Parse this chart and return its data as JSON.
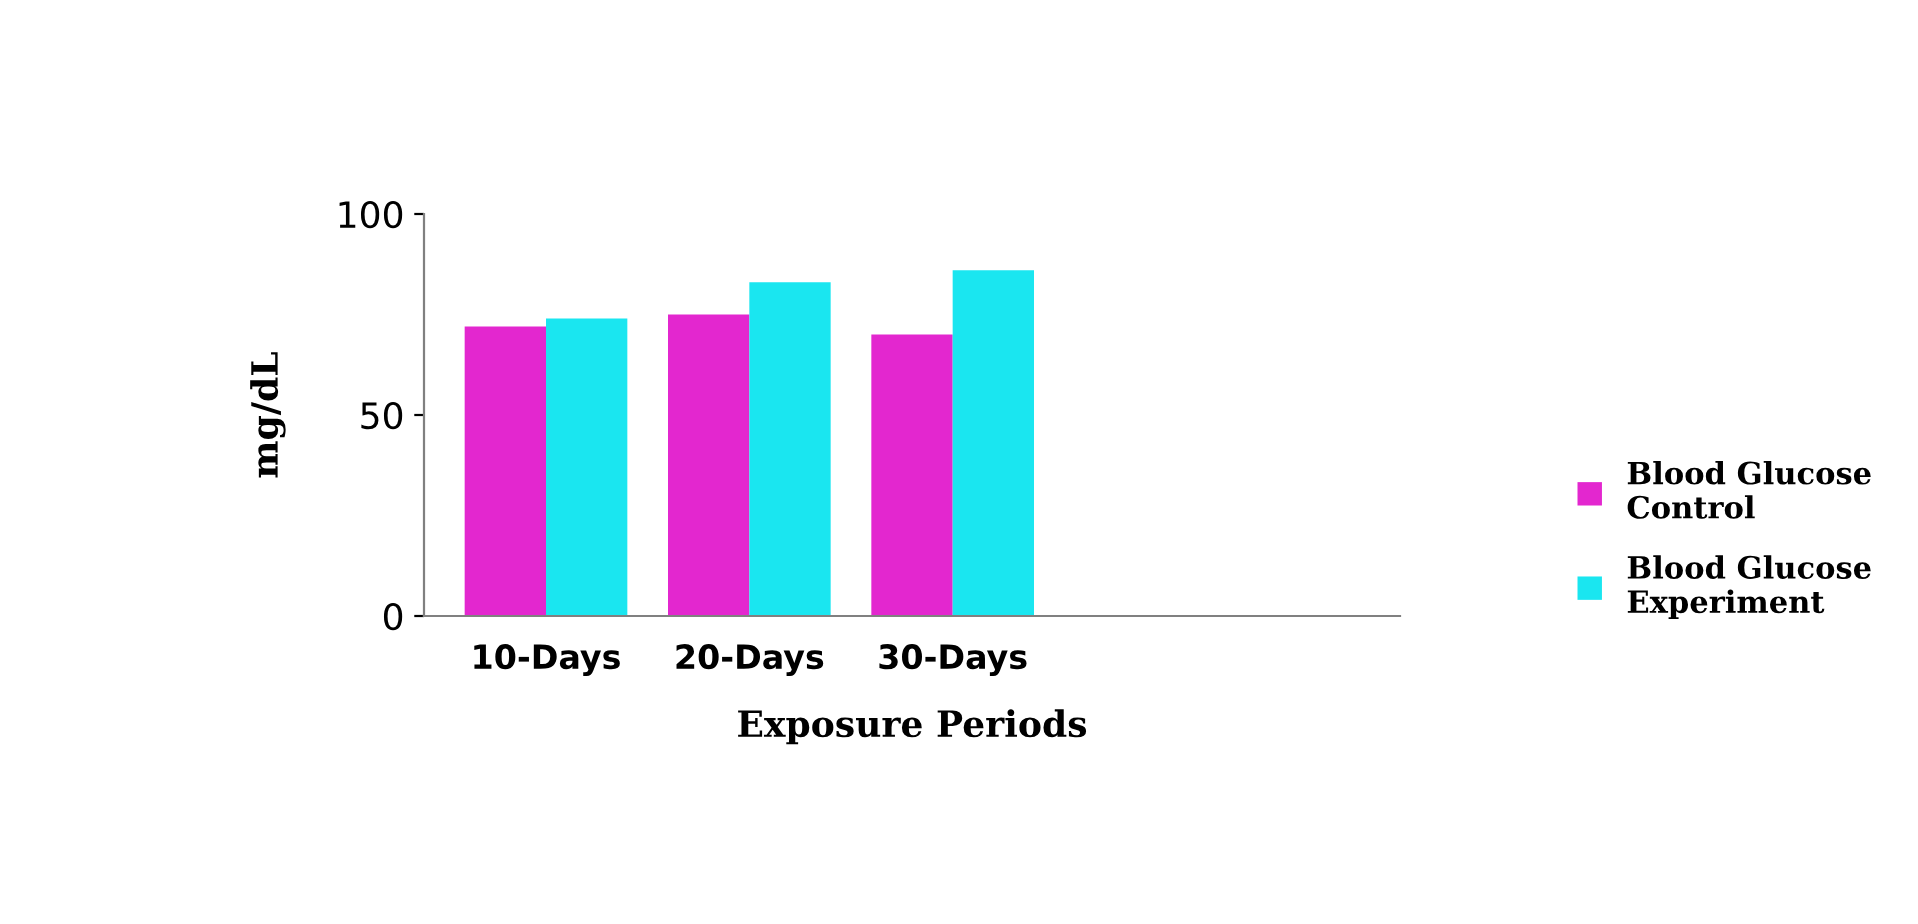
{
  "chart_data": {
    "type": "bar",
    "xlabel": "Exposure Periods",
    "ylabel": "mg/dL",
    "categories": [
      "10-Days",
      "20-Days",
      "30-Days"
    ],
    "series": [
      {
        "name": "Blood Glucose Control",
        "color": "#e327cf",
        "values": [
          72,
          75,
          70
        ]
      },
      {
        "name": "Blood Glucose Experiment",
        "color": "#1ae6f0",
        "values": [
          74,
          83,
          86
        ]
      }
    ],
    "ylim": [
      0,
      100
    ],
    "yticks": [
      0,
      50,
      100
    ],
    "grid": false,
    "legend": "right"
  }
}
